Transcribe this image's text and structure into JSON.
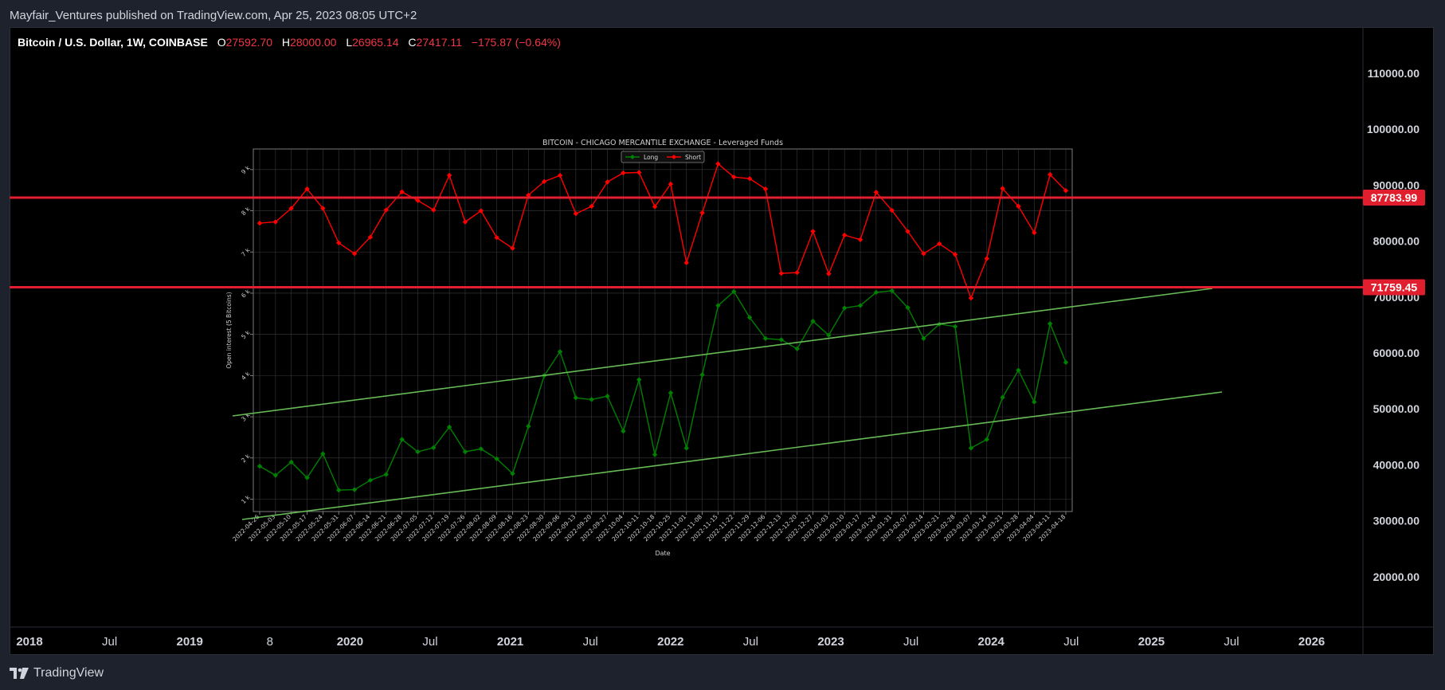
{
  "header": {
    "published_line": "Mayfair_Ventures published on TradingView.com, Apr 25, 2023 08:05 UTC+2"
  },
  "symbol_legend": {
    "symbol": "Bitcoin / U.S. Dollar, 1W, COINBASE",
    "o_label": "O",
    "o_value": "27592.70",
    "h_label": "H",
    "h_value": "28000.00",
    "l_label": "L",
    "l_value": "26965.14",
    "c_label": "C",
    "c_value": "27417.11",
    "change": "−175.87 (−0.64%)"
  },
  "price_axis": {
    "labels": [
      "110000.00",
      "100000.00",
      "90000.00",
      "80000.00",
      "70000.00",
      "60000.00",
      "50000.00",
      "40000.00",
      "30000.00",
      "20000.00"
    ],
    "levels": [
      {
        "value": 87783.99,
        "label": "87783.99"
      },
      {
        "value": 71759.45,
        "label": "71759.45"
      }
    ]
  },
  "time_axis": {
    "labels": [
      "2018",
      "Jul",
      "2019",
      "8",
      "2020",
      "Jul",
      "2021",
      "Jul",
      "2022",
      "Jul",
      "2023",
      "Jul",
      "2024",
      "Jul",
      "2025",
      "Jul",
      "2026"
    ]
  },
  "footer": {
    "brand": "TradingView"
  },
  "colors": {
    "long": "#008000",
    "short": "#ff0000",
    "channel": "#66bb55",
    "level_line": "#e01e2d",
    "level_badge": "#e01e2d",
    "down": "#f23645"
  },
  "chart_data": {
    "type": "line",
    "title": "BITCOIN - CHICAGO MERCANTILE EXCHANGE - Leveraged Funds",
    "xlabel": "Date",
    "ylabel": "Open interest (5 Bitcoins)",
    "ytick_labels": [
      "1 k",
      "2 k",
      "3 k",
      "4 k",
      "5 k",
      "6 k",
      "7 k",
      "8 k",
      "9 k"
    ],
    "ylim": [
      700,
      9500
    ],
    "grid": true,
    "legend_position": "top-center",
    "x": [
      "2022-04-26",
      "2022-05-03",
      "2022-05-10",
      "2022-05-17",
      "2022-05-24",
      "2022-05-31",
      "2022-06-07",
      "2022-06-14",
      "2022-06-21",
      "2022-06-28",
      "2022-07-05",
      "2022-07-12",
      "2022-07-19",
      "2022-07-26",
      "2022-08-02",
      "2022-08-09",
      "2022-08-16",
      "2022-08-23",
      "2022-08-30",
      "2022-09-06",
      "2022-09-13",
      "2022-09-20",
      "2022-09-27",
      "2022-10-04",
      "2022-10-11",
      "2022-10-18",
      "2022-10-25",
      "2022-11-01",
      "2022-11-08",
      "2022-11-15",
      "2022-11-22",
      "2022-11-29",
      "2022-12-06",
      "2022-12-13",
      "2022-12-20",
      "2022-12-27",
      "2023-01-03",
      "2023-01-10",
      "2023-01-17",
      "2023-01-24",
      "2023-01-31",
      "2023-02-07",
      "2023-02-14",
      "2023-02-21",
      "2023-02-28",
      "2023-03-07",
      "2023-03-14",
      "2023-03-21",
      "2023-03-28",
      "2023-04-04",
      "2023-04-11",
      "2023-04-18"
    ],
    "series": [
      {
        "name": "Long",
        "values": [
          1800,
          1580,
          1900,
          1520,
          2100,
          1220,
          1230,
          1460,
          1600,
          2450,
          2150,
          2250,
          2750,
          2150,
          2220,
          1980,
          1620,
          2770,
          4000,
          4580,
          3460,
          3420,
          3500,
          2650,
          3900,
          2080,
          3580,
          2240,
          4020,
          5700,
          6040,
          5410,
          4900,
          4870,
          4650,
          5320,
          4980,
          5640,
          5700,
          6020,
          6060,
          5650,
          4900,
          5250,
          5190,
          2240,
          2450,
          3470,
          4130,
          3360,
          5260,
          4320
        ]
      },
      {
        "name": "Short",
        "values": [
          7700,
          7730,
          8060,
          8530,
          8060,
          7220,
          6960,
          7360,
          8020,
          8460,
          8250,
          8020,
          8860,
          7730,
          8000,
          7350,
          7090,
          8380,
          8710,
          8860,
          7930,
          8110,
          8700,
          8920,
          8930,
          8100,
          8650,
          6740,
          7950,
          9140,
          8820,
          8780,
          8530,
          6480,
          6500,
          7500,
          6470,
          7410,
          7300,
          8450,
          8010,
          7500,
          6960,
          7200,
          6940,
          5880,
          6840,
          8540,
          8110,
          7470,
          8880,
          8490
        ]
      }
    ]
  }
}
